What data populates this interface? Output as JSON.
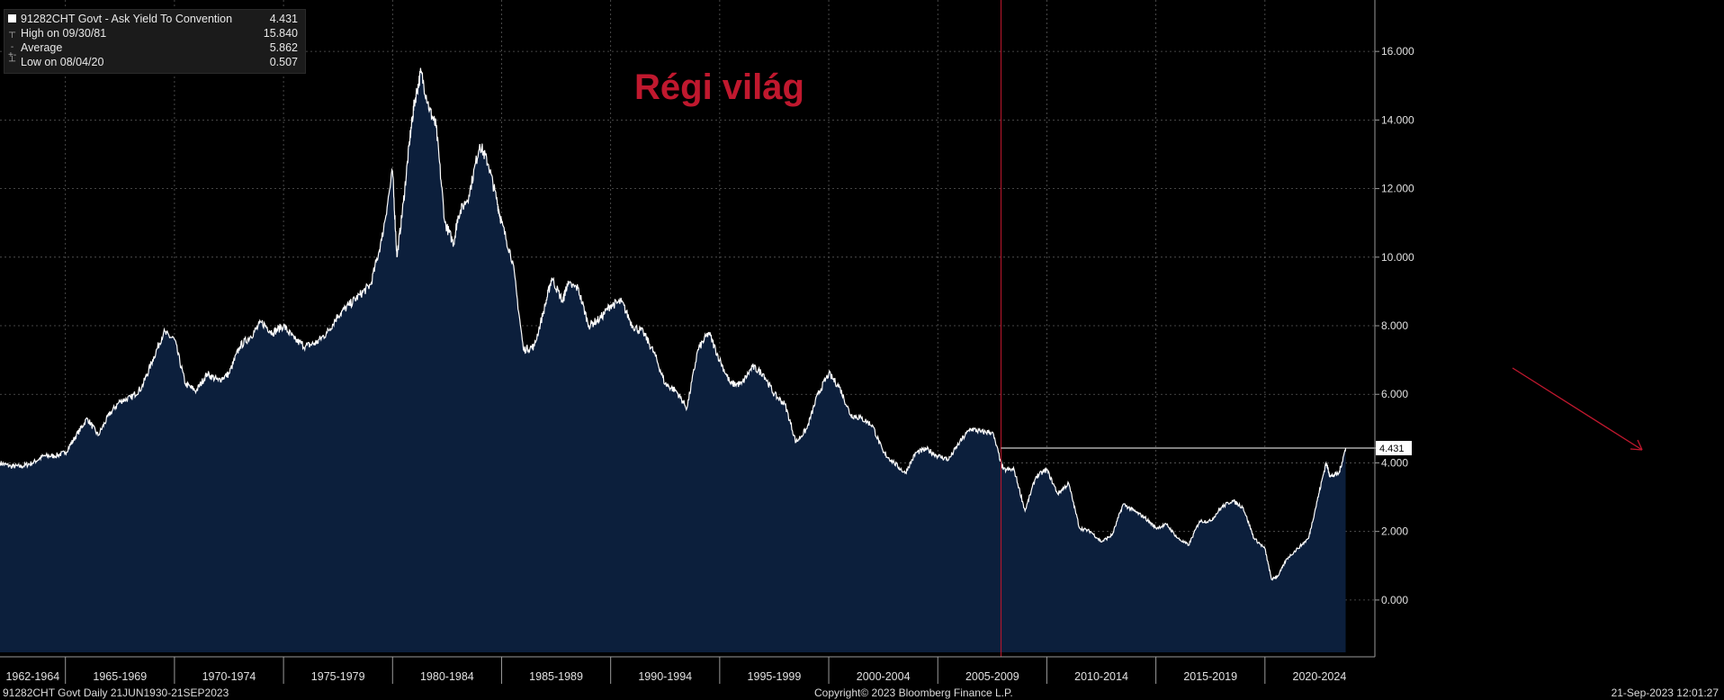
{
  "legend": {
    "security": "91282CHT Govt - Ask Yield To Convention",
    "last_value": "4.431",
    "high_label": "High on 09/30/81",
    "high_value": "15.840",
    "average_label": "Average",
    "average_value": "5.862",
    "low_label": "Low on 08/04/20",
    "low_value": "0.507"
  },
  "annotation": {
    "text": "Régi világ",
    "color": "#c0182e"
  },
  "last_price_label": "4.431",
  "footer": {
    "left": "91282CHT Govt  Daily 21JUN1930-21SEP2023",
    "center": "Copyright© 2023 Bloomberg Finance L.P.",
    "right": "21-Sep-2023 12:01:27"
  },
  "colors": {
    "area_fill": "#0c1f3c",
    "line": "#ffffff",
    "marker_line": "#c0182e",
    "arrow": "#c0182e"
  },
  "chart_data": {
    "type": "area",
    "title": "",
    "xlabel": "",
    "ylabel": "",
    "xlim": [
      1962.0,
      2025.0
    ],
    "ylim": [
      -1,
      17.5
    ],
    "y_ticks": [
      "0.000",
      "2.000",
      "4.000",
      "6.000",
      "8.000",
      "10.000",
      "12.000",
      "14.000",
      "16.000"
    ],
    "y_tick_values": [
      0,
      2,
      4,
      6,
      8,
      10,
      12,
      14,
      16
    ],
    "x_tick_labels": [
      "1962-1964",
      "1965-1969",
      "1970-1974",
      "1975-1979",
      "1980-1984",
      "1985-1989",
      "1990-1994",
      "1995-1999",
      "2000-2004",
      "2005-2009",
      "2010-2014",
      "2015-2019",
      "2020-2024"
    ],
    "x_tick_centers": [
      1963.5,
      1967.5,
      1972.5,
      1977.5,
      1982.5,
      1987.5,
      1992.5,
      1997.5,
      2002.5,
      2007.5,
      2012.5,
      2017.5,
      2022.5
    ],
    "x_boundaries": [
      1965,
      1970,
      1975,
      1980,
      1985,
      1990,
      1995,
      2000,
      2005,
      2010,
      2015,
      2020
    ],
    "grid": true,
    "reference_line_year": 2007.9,
    "horizontal_level": 4.431,
    "series": [
      {
        "name": "91282CHT Govt - Ask Yield To Convention",
        "x": [
          1962.0,
          1962.5,
          1963.0,
          1963.5,
          1964.0,
          1964.5,
          1965.0,
          1965.5,
          1966.0,
          1966.5,
          1967.0,
          1967.5,
          1968.0,
          1968.5,
          1969.0,
          1969.5,
          1970.0,
          1970.5,
          1971.0,
          1971.5,
          1972.0,
          1972.5,
          1973.0,
          1973.5,
          1974.0,
          1974.5,
          1975.0,
          1975.5,
          1976.0,
          1976.5,
          1977.0,
          1977.5,
          1978.0,
          1978.5,
          1979.0,
          1979.5,
          1980.0,
          1980.2,
          1980.5,
          1980.8,
          1981.0,
          1981.3,
          1981.7,
          1982.0,
          1982.4,
          1982.8,
          1983.0,
          1983.5,
          1984.0,
          1984.4,
          1984.8,
          1985.0,
          1985.5,
          1986.0,
          1986.5,
          1987.0,
          1987.3,
          1987.8,
          1988.0,
          1988.5,
          1989.0,
          1989.5,
          1990.0,
          1990.5,
          1991.0,
          1991.5,
          1992.0,
          1992.5,
          1993.0,
          1993.5,
          1994.0,
          1994.5,
          1995.0,
          1995.5,
          1996.0,
          1996.5,
          1997.0,
          1997.5,
          1998.0,
          1998.5,
          1999.0,
          1999.5,
          2000.0,
          2000.5,
          2001.0,
          2001.5,
          2002.0,
          2002.5,
          2003.0,
          2003.5,
          2004.0,
          2004.5,
          2005.0,
          2005.5,
          2006.0,
          2006.5,
          2007.0,
          2007.5,
          2008.0,
          2008.5,
          2009.0,
          2009.5,
          2010.0,
          2010.5,
          2011.0,
          2011.5,
          2012.0,
          2012.5,
          2013.0,
          2013.5,
          2014.0,
          2014.5,
          2015.0,
          2015.5,
          2016.0,
          2016.5,
          2017.0,
          2017.5,
          2018.0,
          2018.5,
          2019.0,
          2019.5,
          2020.0,
          2020.3,
          2020.6,
          2021.0,
          2021.5,
          2022.0,
          2022.4,
          2022.8,
          2023.0,
          2023.4,
          2023.7
        ],
        "values": [
          4.0,
          3.9,
          3.9,
          4.0,
          4.2,
          4.2,
          4.3,
          4.8,
          5.3,
          4.8,
          5.4,
          5.8,
          5.9,
          6.2,
          7.0,
          7.8,
          7.6,
          6.3,
          6.1,
          6.6,
          6.4,
          6.6,
          7.4,
          7.7,
          8.1,
          7.8,
          8.0,
          7.6,
          7.4,
          7.5,
          7.8,
          8.3,
          8.6,
          8.9,
          9.2,
          10.5,
          12.5,
          10.0,
          11.6,
          13.5,
          14.5,
          15.4,
          14.3,
          13.8,
          11.0,
          10.4,
          11.2,
          11.8,
          13.3,
          12.7,
          11.6,
          11.0,
          9.9,
          7.3,
          7.4,
          8.6,
          9.4,
          8.7,
          9.2,
          9.1,
          8.0,
          8.2,
          8.6,
          8.7,
          8.0,
          7.8,
          7.2,
          6.3,
          6.1,
          5.6,
          7.3,
          7.8,
          7.0,
          6.3,
          6.3,
          6.8,
          6.6,
          6.0,
          5.7,
          4.6,
          5.0,
          6.0,
          6.6,
          6.2,
          5.4,
          5.3,
          5.1,
          4.3,
          4.0,
          3.7,
          4.3,
          4.4,
          4.2,
          4.1,
          4.6,
          5.0,
          4.9,
          4.9,
          3.8,
          3.8,
          2.6,
          3.6,
          3.8,
          3.1,
          3.4,
          2.1,
          2.0,
          1.7,
          1.9,
          2.8,
          2.6,
          2.4,
          2.1,
          2.2,
          1.8,
          1.6,
          2.3,
          2.3,
          2.7,
          2.9,
          2.7,
          1.8,
          1.5,
          0.6,
          0.7,
          1.2,
          1.5,
          1.8,
          2.9,
          4.0,
          3.6,
          3.7,
          4.43
        ]
      }
    ]
  }
}
